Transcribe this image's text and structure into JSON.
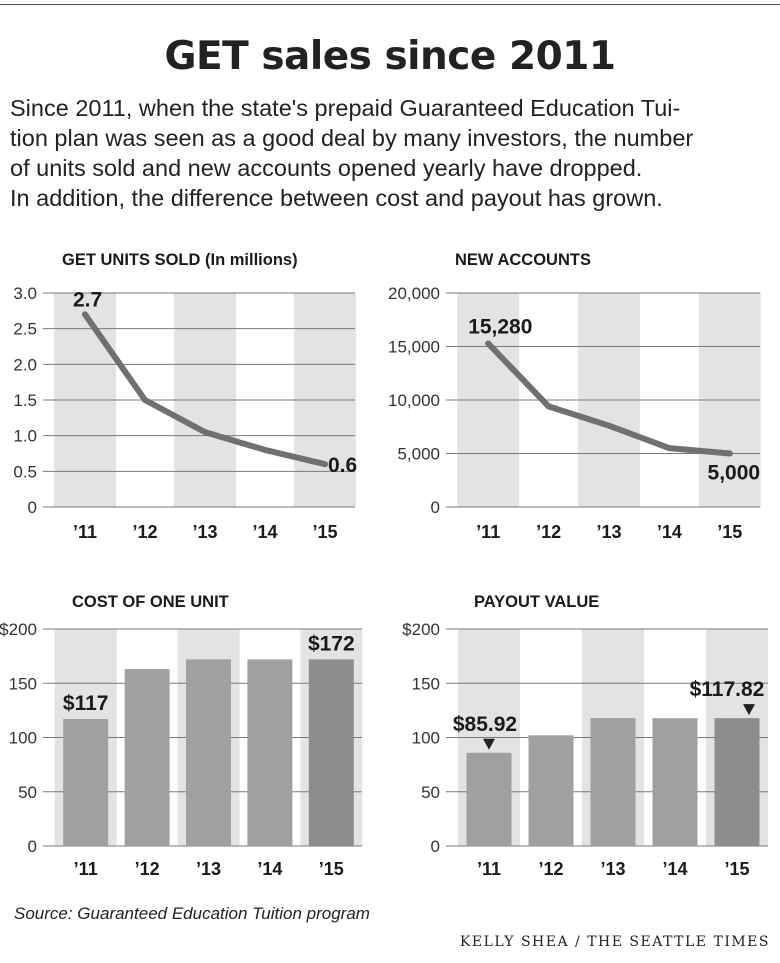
{
  "title": "GET sales since 2011",
  "intro_lines": [
    "Since 2011, when the state's prepaid Guaranteed Education Tui-",
    "tion plan was seen as a good deal by many investors, the number",
    "of units sold and new accounts opened yearly have dropped.",
    "In addition, the difference between cost and payout has grown."
  ],
  "source": "Source: Guaranteed Education Tuition program",
  "credit": "KELLY SHEA / THE SEATTLE TIMES",
  "colors": {
    "band": "#e3e3e3",
    "line": "#707070",
    "bar": "#a29fa1",
    "bar_last": "#8f8c8e",
    "grid": "#7a7a7a",
    "text": "#1a1a1a"
  },
  "chart_data": [
    {
      "type": "line",
      "title": "GET UNITS SOLD (In millions)",
      "categories": [
        "’11",
        "’12",
        "’13",
        "’14",
        "’15"
      ],
      "values": [
        2.7,
        1.5,
        1.05,
        0.8,
        0.6
      ],
      "ylim": [
        0,
        3.0
      ],
      "yticks": [
        0,
        0.5,
        1.0,
        1.5,
        2.0,
        2.5,
        3.0
      ],
      "ytick_labels": [
        "0",
        "0.5",
        "1.0",
        "1.5",
        "2.0",
        "2.5",
        "3.0"
      ],
      "annotations": [
        {
          "index": 0,
          "text": "2.7"
        },
        {
          "index": 4,
          "text": "0.6"
        }
      ]
    },
    {
      "type": "line",
      "title": "NEW ACCOUNTS",
      "categories": [
        "’11",
        "’12",
        "’13",
        "’14",
        "’15"
      ],
      "values": [
        15280,
        9400,
        7600,
        5500,
        5000
      ],
      "ylim": [
        0,
        20000
      ],
      "yticks": [
        0,
        5000,
        10000,
        15000,
        20000
      ],
      "ytick_labels": [
        "0",
        "5,000",
        "10,000",
        "15,000",
        "20,000"
      ],
      "annotations": [
        {
          "index": 0,
          "text": "15,280"
        },
        {
          "index": 4,
          "text": "5,000"
        }
      ]
    },
    {
      "type": "bar",
      "title": "COST OF ONE UNIT",
      "categories": [
        "’11",
        "’12",
        "’13",
        "’14",
        "’15"
      ],
      "values": [
        117,
        163,
        172,
        172,
        172
      ],
      "ylim": [
        0,
        200
      ],
      "yticks": [
        0,
        50,
        100,
        150,
        200
      ],
      "ytick_labels": [
        "0",
        "50",
        "100",
        "150",
        "$200"
      ],
      "annotations": [
        {
          "index": 0,
          "text": "$117"
        },
        {
          "index": 4,
          "text": "$172"
        }
      ]
    },
    {
      "type": "bar",
      "title": "PAYOUT VALUE",
      "categories": [
        "’11",
        "’12",
        "’13",
        "’14",
        "’15"
      ],
      "values": [
        85.92,
        102,
        117.82,
        117.82,
        117.82
      ],
      "ylim": [
        0,
        200
      ],
      "yticks": [
        0,
        50,
        100,
        150,
        200
      ],
      "ytick_labels": [
        "0",
        "50",
        "100",
        "150",
        "$200"
      ],
      "annotations": [
        {
          "index": 0,
          "text": "$85.92"
        },
        {
          "index": 4,
          "text": "$117.82"
        }
      ]
    }
  ]
}
